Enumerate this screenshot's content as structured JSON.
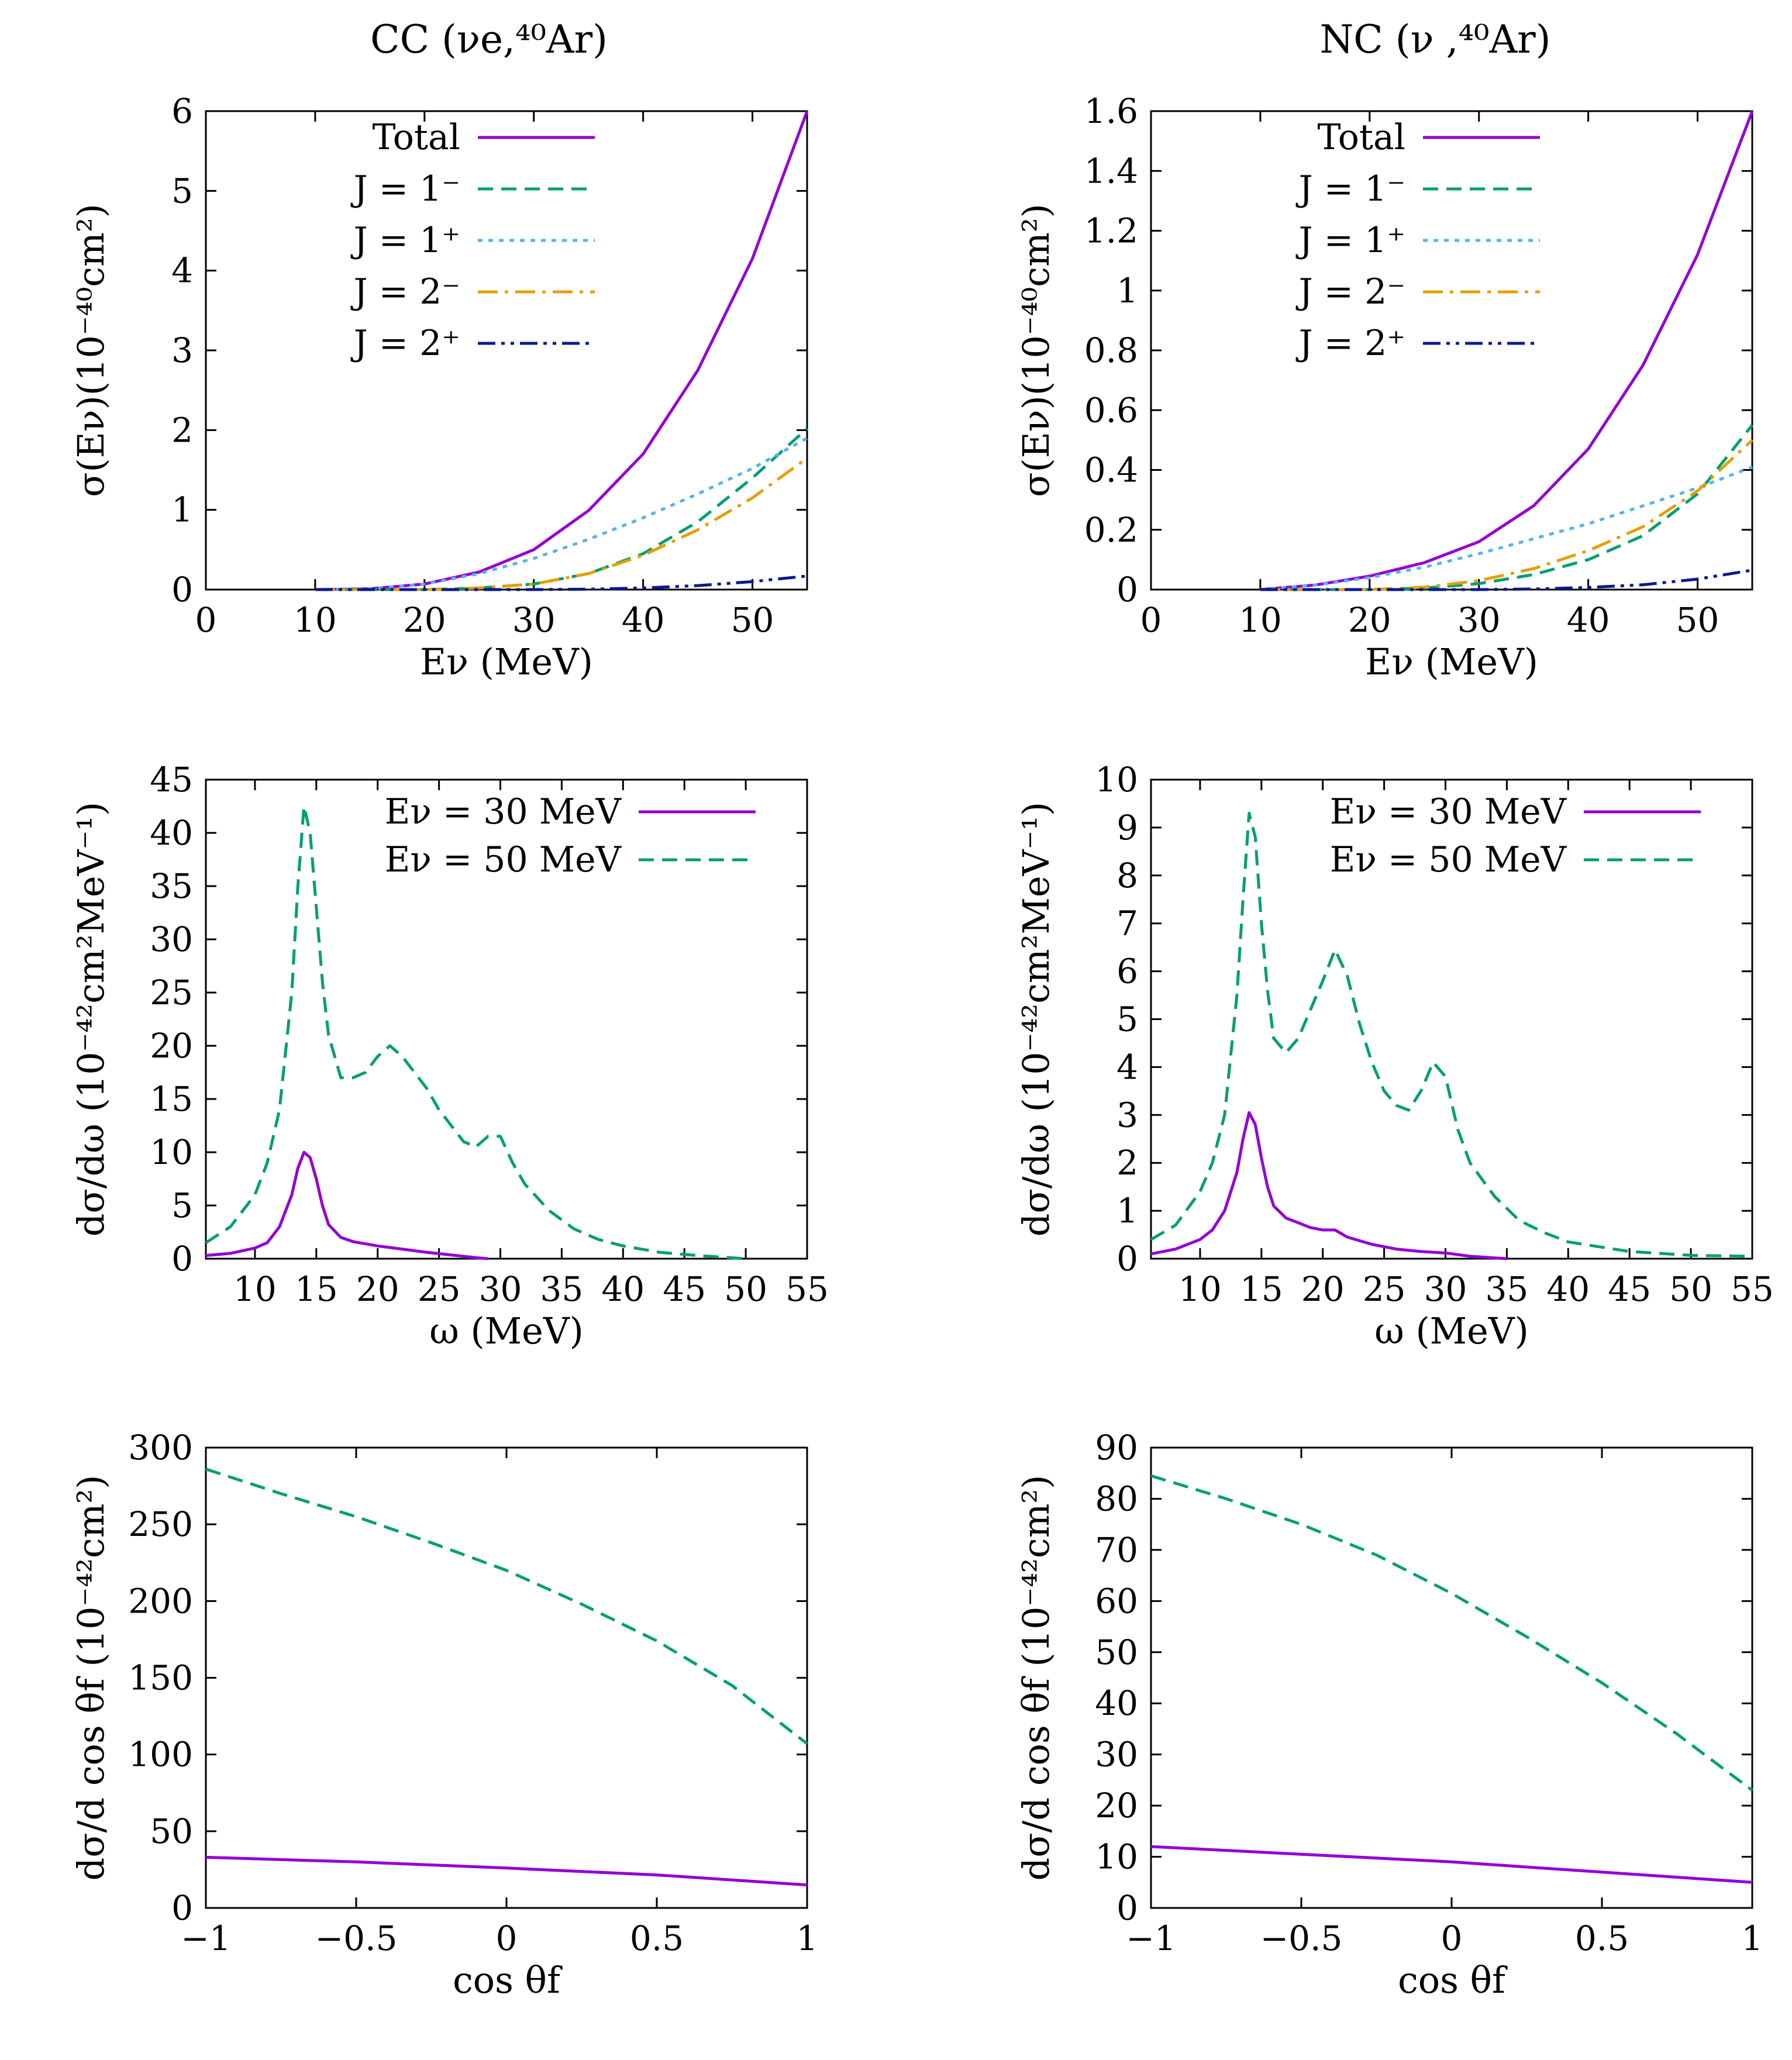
{
  "titles": {
    "cc": "CC (νe,⁴⁰Ar)",
    "nc": "NC (ν ,⁴⁰Ar)"
  },
  "colors": {
    "total": "#9400d3",
    "j1m": "#009e73",
    "j1p": "#56b4e9",
    "j2m": "#e69f00",
    "j2p": "#0a1a8c",
    "e30": "#9400d3",
    "e50": "#009e73"
  },
  "chart_data": [
    {
      "id": "cc-total",
      "type": "line",
      "column": "cc",
      "row": 0,
      "xlabel": "Eν (MeV)",
      "ylabel": "σ(Eν)(10⁻⁴⁰cm²)",
      "xlim": [
        0,
        55
      ],
      "ylim": [
        0,
        6
      ],
      "xticks": [
        "0",
        "10",
        "20",
        "30",
        "40",
        "50"
      ],
      "yticks": [
        "0",
        "1",
        "2",
        "3",
        "4",
        "5",
        "6"
      ],
      "series": [
        {
          "name": "Total",
          "key": "total",
          "style": "solid",
          "x": [
            10,
            15,
            20,
            25,
            30,
            35,
            40,
            45,
            50,
            55
          ],
          "y": [
            0.0,
            0.01,
            0.07,
            0.22,
            0.5,
            0.99,
            1.7,
            2.75,
            4.15,
            6.0
          ]
        },
        {
          "name": "J = 1⁻",
          "key": "j1m",
          "style": "dash",
          "x": [
            10,
            20,
            25,
            30,
            35,
            40,
            45,
            50,
            55
          ],
          "y": [
            0,
            0,
            0.02,
            0.07,
            0.2,
            0.45,
            0.85,
            1.4,
            2.02
          ]
        },
        {
          "name": "J = 1⁺",
          "key": "j1p",
          "style": "dot",
          "x": [
            10,
            15,
            20,
            25,
            30,
            35,
            40,
            45,
            50,
            55
          ],
          "y": [
            0.0,
            0.01,
            0.07,
            0.2,
            0.39,
            0.63,
            0.9,
            1.2,
            1.52,
            1.9
          ]
        },
        {
          "name": "J = 2⁻",
          "key": "j2m",
          "style": "dashdot",
          "x": [
            10,
            20,
            25,
            30,
            35,
            40,
            45,
            50,
            55
          ],
          "y": [
            0,
            0,
            0.02,
            0.07,
            0.2,
            0.43,
            0.75,
            1.15,
            1.65
          ]
        },
        {
          "name": "J = 2⁺",
          "key": "j2p",
          "style": "dashdotdot",
          "x": [
            10,
            30,
            35,
            40,
            45,
            50,
            55
          ],
          "y": [
            0,
            0,
            0.005,
            0.02,
            0.05,
            0.1,
            0.17
          ]
        }
      ]
    },
    {
      "id": "nc-total",
      "type": "line",
      "column": "nc",
      "row": 0,
      "xlabel": "Eν (MeV)",
      "ylabel": "σ(Eν)(10⁻⁴⁰cm²)",
      "xlim": [
        0,
        55
      ],
      "ylim": [
        0,
        1.6
      ],
      "xticks": [
        "0",
        "10",
        "20",
        "30",
        "40",
        "50"
      ],
      "yticks": [
        "0",
        "0.2",
        "0.4",
        "0.6",
        "0.8",
        "1",
        "1.2",
        "1.4",
        "1.6"
      ],
      "series": [
        {
          "name": "Total",
          "key": "total",
          "style": "solid",
          "x": [
            10,
            15,
            20,
            25,
            30,
            35,
            40,
            45,
            50,
            55
          ],
          "y": [
            0.0,
            0.015,
            0.045,
            0.09,
            0.16,
            0.28,
            0.47,
            0.75,
            1.12,
            1.6
          ]
        },
        {
          "name": "J = 1⁻",
          "key": "j1m",
          "style": "dash",
          "x": [
            10,
            20,
            25,
            30,
            35,
            40,
            45,
            50,
            55
          ],
          "y": [
            0,
            0,
            0.005,
            0.02,
            0.05,
            0.1,
            0.18,
            0.32,
            0.55
          ]
        },
        {
          "name": "J = 1⁺",
          "key": "j1p",
          "style": "dot",
          "x": [
            10,
            15,
            20,
            25,
            30,
            35,
            40,
            45,
            50,
            55
          ],
          "y": [
            0.0,
            0.015,
            0.04,
            0.075,
            0.12,
            0.17,
            0.22,
            0.28,
            0.34,
            0.41
          ]
        },
        {
          "name": "J = 2⁻",
          "key": "j2m",
          "style": "dashdot",
          "x": [
            10,
            20,
            25,
            30,
            35,
            40,
            45,
            50,
            55
          ],
          "y": [
            0,
            0,
            0.008,
            0.03,
            0.07,
            0.13,
            0.21,
            0.33,
            0.5
          ]
        },
        {
          "name": "J = 2⁺",
          "key": "j2p",
          "style": "dashdotdot",
          "x": [
            10,
            30,
            35,
            40,
            45,
            50,
            55
          ],
          "y": [
            0,
            0,
            0.002,
            0.007,
            0.016,
            0.035,
            0.065
          ]
        }
      ]
    },
    {
      "id": "cc-domega",
      "type": "line",
      "column": "cc",
      "row": 1,
      "xlabel": "ω (MeV)",
      "ylabel": "dσ/dω (10⁻⁴²cm²MeV⁻¹)",
      "xlim": [
        6,
        55
      ],
      "ylim": [
        0,
        45
      ],
      "xticks": [
        "10",
        "15",
        "20",
        "25",
        "30",
        "35",
        "40",
        "45",
        "50",
        "55"
      ],
      "yticks": [
        "0",
        "5",
        "10",
        "15",
        "20",
        "25",
        "30",
        "35",
        "40",
        "45"
      ],
      "series": [
        {
          "name": "Eν = 30 MeV",
          "key": "e30",
          "style": "solid",
          "x": [
            6,
            8,
            10,
            11,
            12,
            13,
            13.5,
            14,
            14.5,
            15,
            15.5,
            16,
            17,
            18,
            20,
            22,
            24,
            26,
            28,
            29
          ],
          "y": [
            0.3,
            0.5,
            1.0,
            1.5,
            3,
            6,
            8.5,
            10,
            9.5,
            7.5,
            5,
            3.2,
            2,
            1.6,
            1.2,
            0.9,
            0.6,
            0.35,
            0.1,
            0
          ]
        },
        {
          "name": "Eν = 50 MeV",
          "key": "e50",
          "style": "dash",
          "x": [
            6,
            8,
            10,
            11,
            12,
            13,
            13.5,
            14,
            14.5,
            15,
            15.5,
            16,
            17,
            18,
            19,
            20,
            21,
            22,
            23,
            24,
            25,
            26,
            27,
            28,
            29,
            30,
            31,
            32,
            34,
            36,
            38,
            40,
            43,
            46,
            50
          ],
          "y": [
            1.5,
            3,
            6,
            9,
            14,
            25,
            35,
            42.5,
            40,
            33,
            26,
            21,
            17,
            17,
            17.5,
            19,
            20,
            19,
            17.5,
            16,
            14,
            12.5,
            11,
            10.5,
            11.5,
            11.5,
            9,
            7,
            4.5,
            2.8,
            1.8,
            1.2,
            0.6,
            0.3,
            0
          ]
        }
      ]
    },
    {
      "id": "nc-domega",
      "type": "line",
      "column": "nc",
      "row": 1,
      "xlabel": "ω (MeV)",
      "ylabel": "dσ/dω (10⁻⁴²cm²MeV⁻¹)",
      "xlim": [
        6,
        55
      ],
      "ylim": [
        0,
        10
      ],
      "xticks": [
        "10",
        "15",
        "20",
        "25",
        "30",
        "35",
        "40",
        "45",
        "50",
        "55"
      ],
      "yticks": [
        "0",
        "1",
        "2",
        "3",
        "4",
        "5",
        "6",
        "7",
        "8",
        "9",
        "10"
      ],
      "series": [
        {
          "name": "Eν = 30 MeV",
          "key": "e30",
          "style": "solid",
          "x": [
            6,
            8,
            10,
            11,
            12,
            13,
            13.5,
            14,
            14.5,
            15,
            15.5,
            16,
            17,
            18,
            19,
            20,
            21,
            22,
            24,
            26,
            28,
            30,
            32,
            35
          ],
          "y": [
            0.1,
            0.2,
            0.4,
            0.6,
            1.0,
            1.8,
            2.5,
            3.05,
            2.8,
            2.1,
            1.5,
            1.1,
            0.85,
            0.75,
            0.65,
            0.6,
            0.6,
            0.45,
            0.3,
            0.2,
            0.15,
            0.12,
            0.05,
            0
          ]
        },
        {
          "name": "Eν = 50 MeV",
          "key": "e50",
          "style": "dash",
          "x": [
            6,
            8,
            10,
            11,
            12,
            13,
            13.5,
            14,
            14.5,
            15,
            15.5,
            16,
            17,
            18,
            19,
            20,
            21,
            22,
            23,
            24,
            25,
            26,
            27,
            28,
            29,
            30,
            31,
            32,
            34,
            36,
            38,
            40,
            45,
            50,
            55
          ],
          "y": [
            0.4,
            0.7,
            1.4,
            2,
            3,
            5.5,
            7.5,
            9.3,
            8.8,
            7,
            5.6,
            4.6,
            4.3,
            4.6,
            5.2,
            5.8,
            6.45,
            5.9,
            4.9,
            4.1,
            3.5,
            3.2,
            3.1,
            3.5,
            4.1,
            3.8,
            2.7,
            2.0,
            1.3,
            0.8,
            0.55,
            0.35,
            0.15,
            0.07,
            0.05
          ]
        }
      ]
    },
    {
      "id": "cc-dcos",
      "type": "line",
      "column": "cc",
      "row": 2,
      "xlabel": "cos θf",
      "ylabel": "dσ/d cos θf (10⁻⁴²cm²)",
      "xlim": [
        -1,
        1
      ],
      "ylim": [
        0,
        300
      ],
      "xticks": [
        "−1",
        "−0.5",
        "0",
        "0.5",
        "1"
      ],
      "yticks": [
        "0",
        "50",
        "100",
        "150",
        "200",
        "250",
        "300"
      ],
      "series": [
        {
          "name": "Eν = 30 MeV",
          "key": "e30",
          "style": "solid",
          "x": [
            -1,
            -0.5,
            0,
            0.5,
            1
          ],
          "y": [
            33,
            30,
            26,
            21.5,
            15
          ]
        },
        {
          "name": "Eν = 50 MeV",
          "key": "e50",
          "style": "dash",
          "x": [
            -1,
            -0.75,
            -0.5,
            -0.25,
            0,
            0.25,
            0.5,
            0.75,
            1
          ],
          "y": [
            286,
            270,
            255,
            238,
            220,
            198,
            174,
            145,
            107
          ]
        }
      ]
    },
    {
      "id": "nc-dcos",
      "type": "line",
      "column": "nc",
      "row": 2,
      "xlabel": "cos θf",
      "ylabel": "dσ/d cos θf (10⁻⁴²cm²)",
      "xlim": [
        -1,
        1
      ],
      "ylim": [
        0,
        90
      ],
      "xticks": [
        "−1",
        "−0.5",
        "0",
        "0.5",
        "1"
      ],
      "yticks": [
        "0",
        "10",
        "20",
        "30",
        "40",
        "50",
        "60",
        "70",
        "80",
        "90"
      ],
      "series": [
        {
          "name": "Eν = 30 MeV",
          "key": "e30",
          "style": "solid",
          "x": [
            -1,
            -0.5,
            0,
            0.5,
            1
          ],
          "y": [
            12,
            10.5,
            9,
            7,
            5
          ]
        },
        {
          "name": "Eν = 50 MeV",
          "key": "e50",
          "style": "dash",
          "x": [
            -1,
            -0.75,
            -0.5,
            -0.25,
            0,
            0.25,
            0.5,
            0.75,
            1
          ],
          "y": [
            84.5,
            80,
            75,
            69,
            61.5,
            53,
            44,
            34,
            23
          ]
        }
      ]
    }
  ]
}
